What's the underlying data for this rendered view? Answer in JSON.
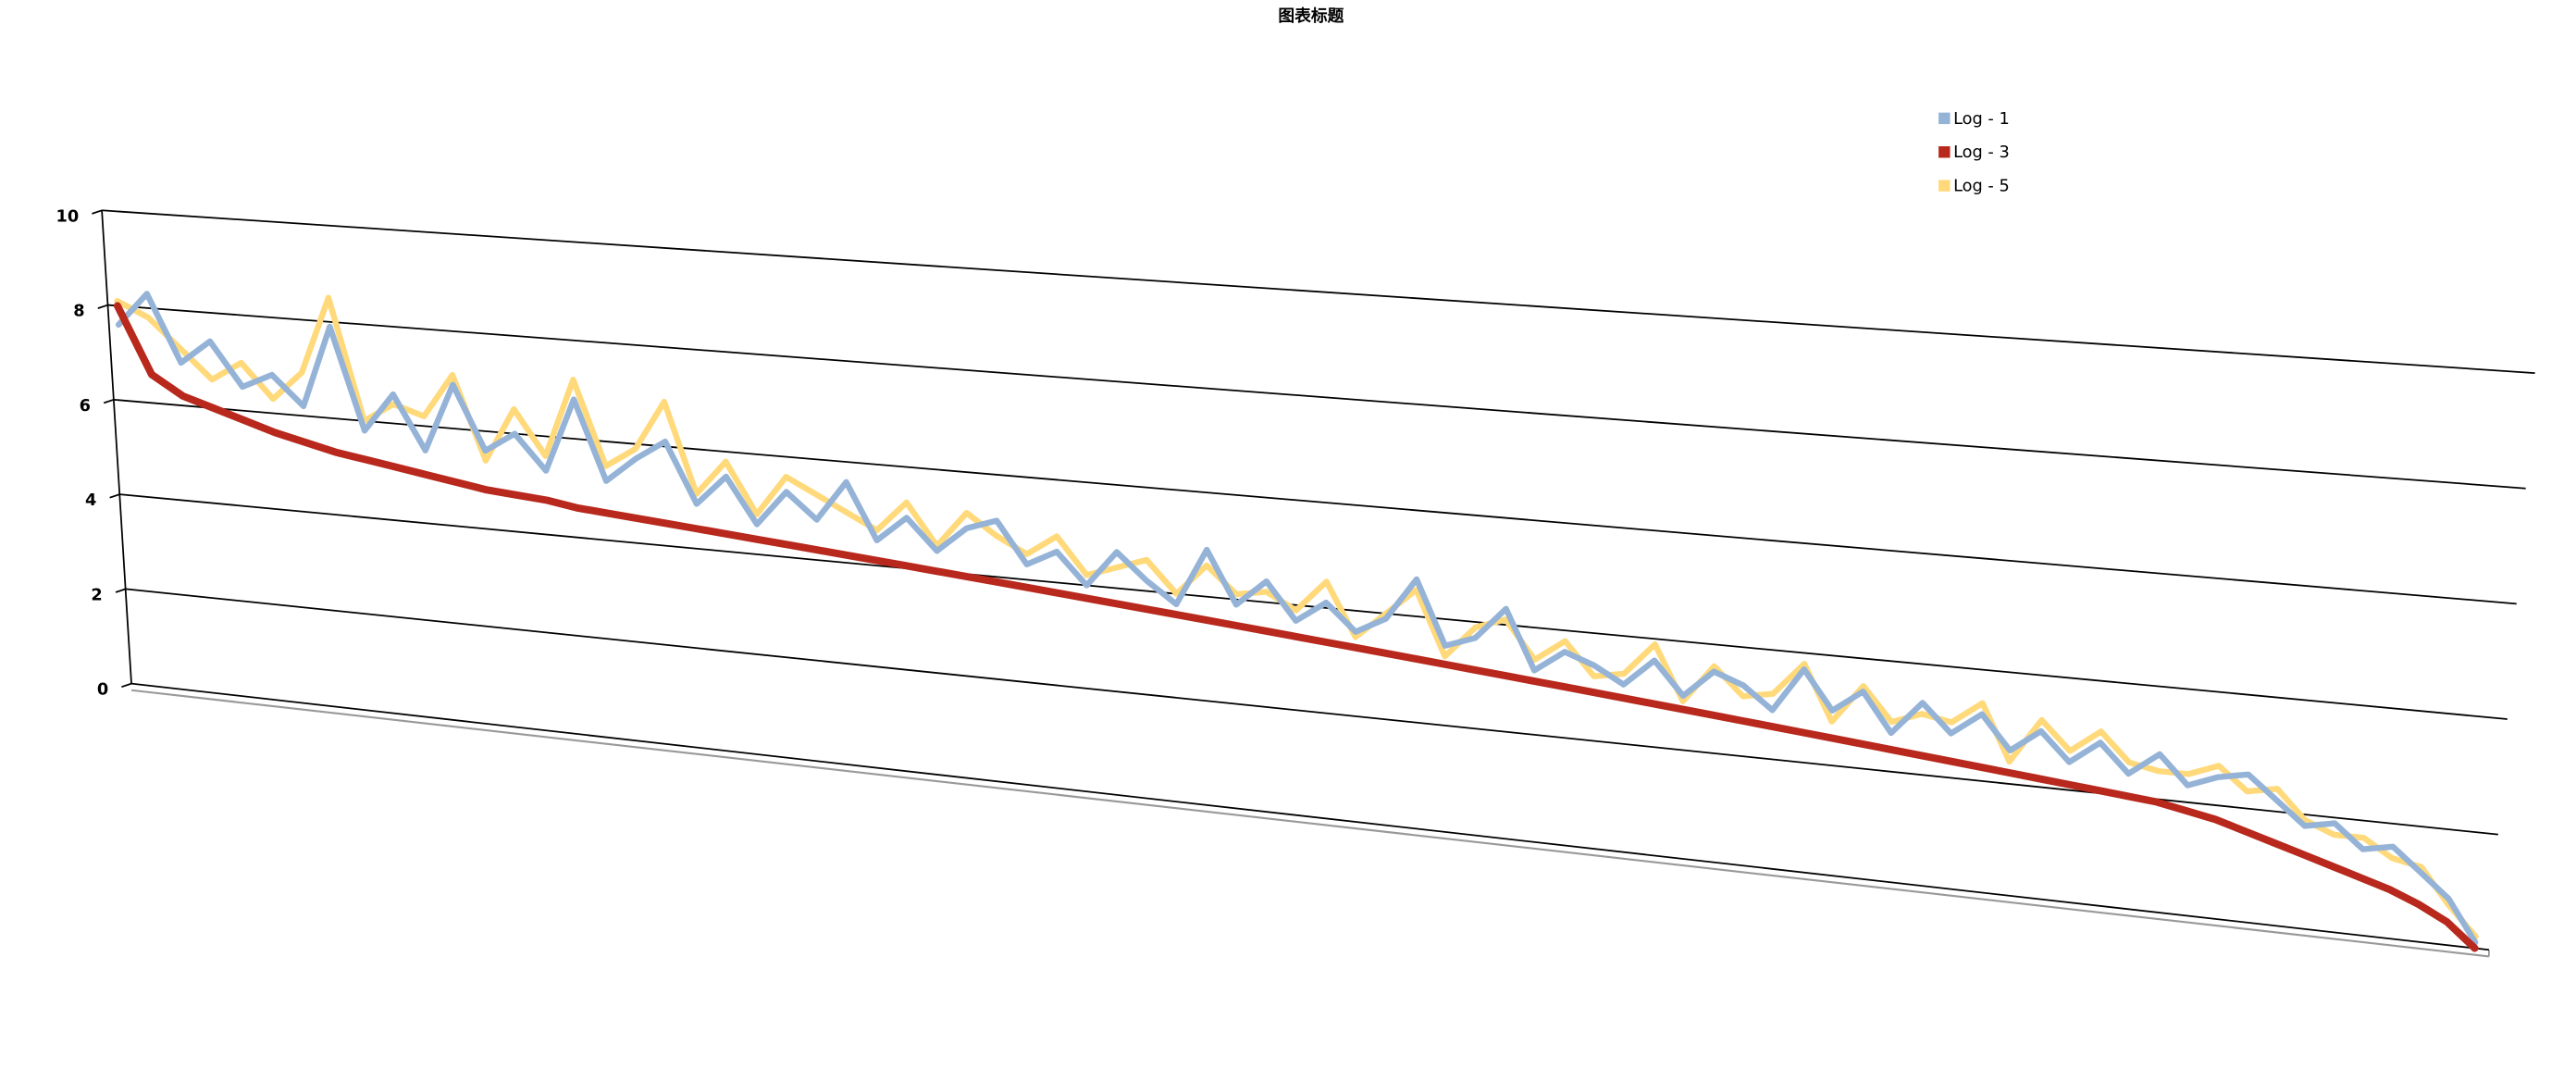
{
  "chart_data": {
    "type": "line3d",
    "title": "图表标题",
    "ylim": [
      0,
      10
    ],
    "yticks": [
      0,
      2,
      4,
      6,
      8,
      10
    ],
    "grid": true,
    "legend": "top-right",
    "series": [
      {
        "name": "Log - 1",
        "color": "#95b3d7",
        "values": [
          7.6,
          8.3,
          6.9,
          7.4,
          6.5,
          6.8,
          6.2,
          7.9,
          5.8,
          6.6,
          5.5,
          6.9,
          5.6,
          6.0,
          5.3,
          6.8,
          5.2,
          5.7,
          6.1,
          4.9,
          5.5,
          4.6,
          5.3,
          4.8,
          5.6,
          4.5,
          5.0,
          4.4,
          4.9,
          5.1,
          4.3,
          4.6,
          4.0,
          4.7,
          4.2,
          3.8,
          4.9,
          3.9,
          4.4,
          3.7,
          4.1,
          3.6,
          3.9,
          4.7,
          3.5,
          3.7,
          4.3,
          3.2,
          3.6,
          3.4,
          3.1,
          3.6,
          3.0,
          3.5,
          3.3,
          2.9,
          3.7,
          3.0,
          3.4,
          2.7,
          3.3,
          2.8,
          3.2,
          2.6,
          3.0,
          2.5,
          2.9,
          2.4,
          2.8,
          2.3,
          2.5,
          2.6,
          2.2,
          1.8,
          1.9,
          1.5,
          1.6,
          1.2,
          0.8,
          0.1
        ]
      },
      {
        "name": "Log - 3",
        "color": "#b8281c",
        "values": [
          8.0,
          6.6,
          6.2,
          6.0,
          5.8,
          5.6,
          5.45,
          5.3,
          5.2,
          5.1,
          5.0,
          4.9,
          4.8,
          4.75,
          4.7,
          4.6,
          4.55,
          4.5,
          4.45,
          4.4,
          4.35,
          4.3,
          4.25,
          4.2,
          4.15,
          4.1,
          4.05,
          4.0,
          3.95,
          3.9,
          3.85,
          3.8,
          3.75,
          3.7,
          3.65,
          3.6,
          3.55,
          3.5,
          3.45,
          3.4,
          3.35,
          3.3,
          3.25,
          3.2,
          3.15,
          3.1,
          3.05,
          3.0,
          2.95,
          2.9,
          2.85,
          2.8,
          2.75,
          2.7,
          2.65,
          2.6,
          2.55,
          2.5,
          2.45,
          2.4,
          2.35,
          2.3,
          2.25,
          2.2,
          2.15,
          2.1,
          2.05,
          2.0,
          1.95,
          1.85,
          1.75,
          1.6,
          1.45,
          1.3,
          1.15,
          1.0,
          0.85,
          0.65,
          0.4,
          0.0
        ]
      },
      {
        "name": "Log - 5",
        "color": "#ffd97a",
        "values": [
          8.1,
          7.8,
          7.2,
          6.6,
          7.0,
          6.3,
          6.9,
          8.5,
          6.0,
          6.4,
          6.2,
          7.1,
          5.4,
          6.5,
          5.6,
          7.2,
          5.5,
          5.9,
          6.9,
          5.1,
          5.8,
          4.8,
          5.6,
          5.3,
          5.0,
          4.7,
          5.3,
          4.5,
          5.2,
          4.8,
          4.5,
          4.9,
          4.2,
          4.4,
          4.6,
          4.0,
          4.6,
          4.1,
          4.2,
          3.9,
          4.5,
          3.5,
          4.0,
          4.5,
          3.3,
          3.9,
          4.1,
          3.4,
          3.8,
          3.2,
          3.3,
          3.9,
          2.9,
          3.6,
          3.1,
          3.2,
          3.8,
          2.8,
          3.5,
          2.9,
          3.1,
          3.0,
          3.4,
          2.4,
          3.2,
          2.7,
          3.1,
          2.6,
          2.5,
          2.5,
          2.7,
          2.3,
          2.4,
          1.9,
          1.7,
          1.7,
          1.4,
          1.3,
          0.7,
          0.2
        ]
      }
    ]
  }
}
